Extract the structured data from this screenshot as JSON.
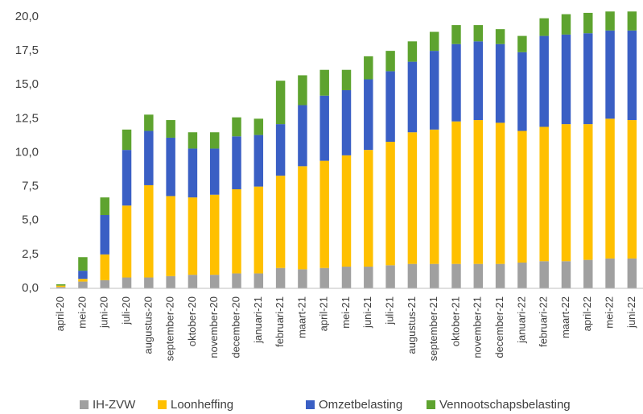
{
  "chart_data": {
    "type": "stacked_bar",
    "categories": [
      "april-20",
      "mei-20",
      "juni-20",
      "juli-20",
      "augustus-20",
      "september-20",
      "oktober-20",
      "november-20",
      "december-20",
      "januari-21",
      "februari-21",
      "maart-21",
      "april-21",
      "mei-21",
      "juni-21",
      "juli-21",
      "augustus-21",
      "september-21",
      "oktober-21",
      "november-21",
      "december-21",
      "januari-22",
      "februari-22",
      "maart-22",
      "april-22",
      "mei-22",
      "juni-22"
    ],
    "series": [
      {
        "name": "IH-ZVW",
        "color": "#a0a0a0",
        "values": [
          0.1,
          0.5,
          0.6,
          0.8,
          0.8,
          0.9,
          1.0,
          1.0,
          1.1,
          1.1,
          1.5,
          1.4,
          1.5,
          1.6,
          1.6,
          1.7,
          1.8,
          1.8,
          1.8,
          1.8,
          1.8,
          1.9,
          2.0,
          2.0,
          2.1,
          2.2,
          2.2
        ]
      },
      {
        "name": "Loonheffing",
        "color": "#ffc000",
        "values": [
          0.1,
          0.2,
          1.9,
          5.3,
          6.8,
          5.9,
          5.7,
          5.9,
          6.2,
          6.4,
          6.8,
          7.6,
          7.9,
          8.2,
          8.6,
          9.1,
          9.7,
          9.9,
          10.5,
          10.6,
          10.4,
          9.7,
          9.9,
          10.1,
          10.0,
          10.3,
          10.2
        ]
      },
      {
        "name": "Omzetbelasting",
        "color": "#3a5fc4",
        "values": [
          0.0,
          0.6,
          2.9,
          4.1,
          4.0,
          4.3,
          3.6,
          3.4,
          3.9,
          3.8,
          3.8,
          4.5,
          4.8,
          4.8,
          5.2,
          5.2,
          5.2,
          5.8,
          5.7,
          5.8,
          5.8,
          5.8,
          6.7,
          6.6,
          6.7,
          6.5,
          6.6
        ]
      },
      {
        "name": "Vennootschapsbelasting",
        "color": "#5ea32f",
        "values": [
          0.1,
          1.0,
          1.3,
          1.5,
          1.2,
          1.3,
          1.2,
          1.2,
          1.4,
          1.2,
          3.2,
          2.2,
          1.9,
          1.5,
          1.7,
          1.5,
          1.5,
          1.4,
          1.4,
          1.2,
          1.1,
          1.2,
          1.3,
          1.5,
          1.5,
          1.4,
          1.4
        ]
      }
    ],
    "ylim": [
      0,
      20
    ],
    "yticks": [
      {
        "value": 0,
        "label": "0,0"
      },
      {
        "value": 2.5,
        "label": "2,5"
      },
      {
        "value": 5,
        "label": "5,0"
      },
      {
        "value": 7.5,
        "label": "7,5"
      },
      {
        "value": 10,
        "label": "10,0"
      },
      {
        "value": 12.5,
        "label": "12,5"
      },
      {
        "value": 15,
        "label": "15,0"
      },
      {
        "value": 17.5,
        "label": "17,5"
      },
      {
        "value": 20,
        "label": "20,0"
      }
    ],
    "grid": false,
    "legend": "bottom"
  }
}
